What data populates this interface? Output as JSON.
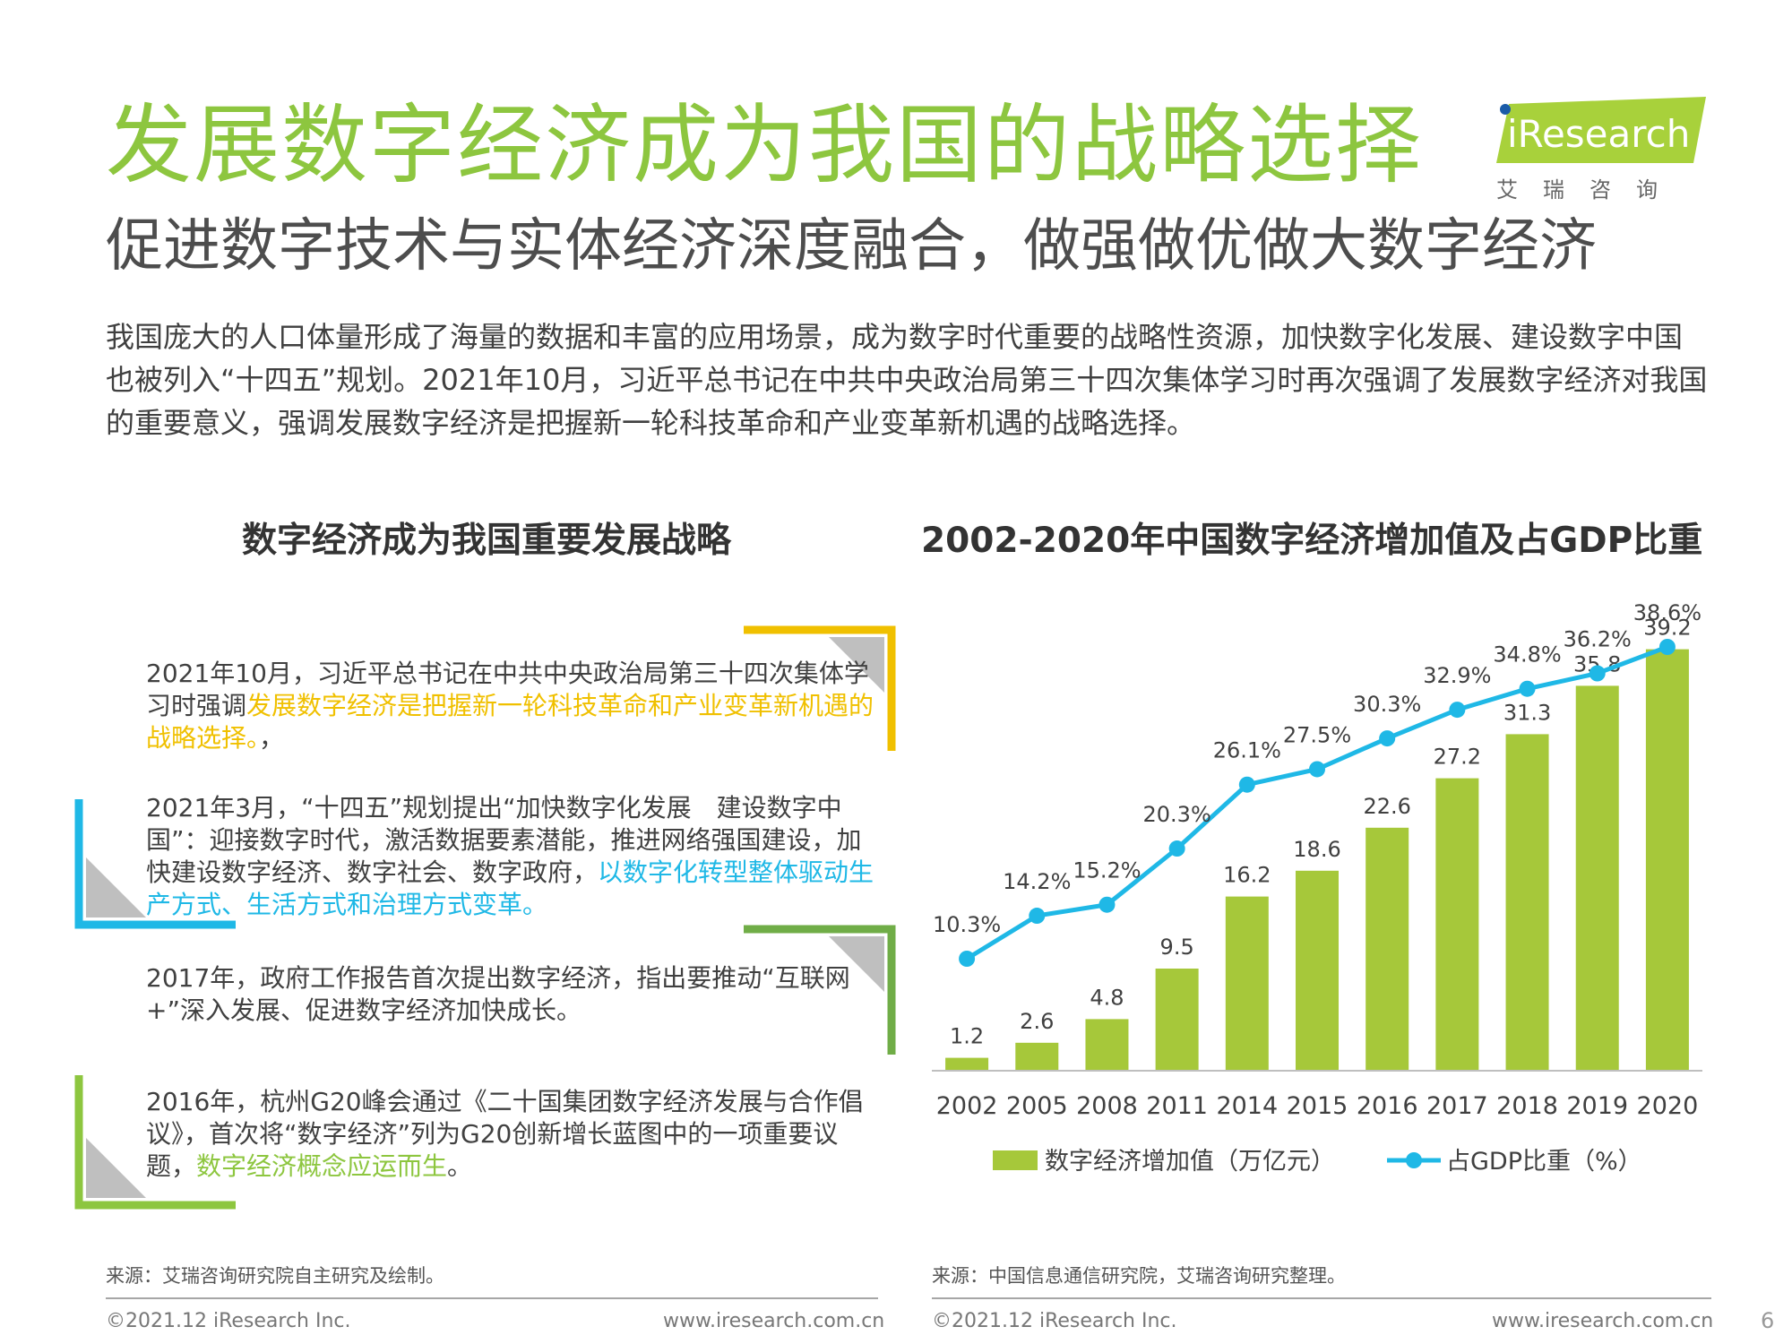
{
  "header": {
    "title": "发展数字经济成为我国的战略选择",
    "subtitle": "促进数字技术与实体经济深度融合，做强做优做大数字经济",
    "intro": "我国庞大的人口体量形成了海量的数据和丰富的应用场景，成为数字时代重要的战略性资源，加快数字化发展、建设数字中国也被列入“十四五”规划。2021年10月，习近平总书记在中共中央政治局第三十四次集体学习时再次强调了发展数字经济对我国的重要意义，强调发展数字经济是把握新一轮科技革命和产业变革新机遇的战略选择。"
  },
  "logo": {
    "text": "iResearch",
    "subtext": "艾瑞咨询"
  },
  "left_panel": {
    "title": "数字经济成为我国重要发展战略",
    "items": [
      {
        "plain": "2021年10月，习近平总书记在中共中央政治局第三十四次集体学习时强调",
        "highlight": "发展数字经济是把握新一轮科技革命和产业变革新机遇的战略选择。",
        "tail": "，",
        "accent": "#f0c000"
      },
      {
        "plain": "2021年3月，“十四五”规划提出“加快数字化发展　建设数字中国”：迎接数字时代，激活数据要素潜能，推进网络强国建设，加快建设数字经济、数字社会、数字政府，",
        "highlight": "以数字化转型整体驱动生产方式、生活方式和治理方式变革。",
        "tail": "",
        "accent": "#1fb8e6"
      },
      {
        "plain": "2017年，政府工作报告首次提出数字经济，指出要推动“互联网+”深入发展、促进数字经济加快成长。",
        "highlight": "",
        "tail": "",
        "accent": "#70ad47"
      },
      {
        "plain": "2016年，杭州G20峰会通过《二十国集团数字经济发展与合作倡议》，首次将“数字经济”列为G20创新增长蓝图中的一项重要议题，",
        "highlight": "数字经济概念应运而生",
        "tail": "。",
        "accent": "#8dc63f"
      }
    ],
    "source": "来源：艾瑞咨询研究院自主研究及绘制。"
  },
  "right_panel": {
    "source": "来源：中国信息通信研究院，艾瑞咨询研究整理。"
  },
  "chart_data": {
    "type": "bar",
    "title": "2002-2020年中国数字经济增加值及占GDP比重",
    "categories": [
      "2002",
      "2005",
      "2008",
      "2011",
      "2014",
      "2015",
      "2016",
      "2017",
      "2018",
      "2019",
      "2020"
    ],
    "series": [
      {
        "name": "数字经济增加值（万亿元）",
        "type": "bar",
        "color": "#a6c83a",
        "values": [
          1.2,
          2.6,
          4.8,
          9.5,
          16.2,
          18.6,
          22.6,
          27.2,
          31.3,
          35.8,
          39.2
        ],
        "labels": [
          "1.2",
          "2.6",
          "4.8",
          "9.5",
          "16.2",
          "18.6",
          "22.6",
          "27.2",
          "31.3",
          "35.8",
          "39.2"
        ]
      },
      {
        "name": "占GDP比重（%）",
        "type": "line",
        "color": "#1fb8e6",
        "values": [
          10.3,
          14.2,
          15.2,
          20.3,
          26.1,
          27.5,
          30.3,
          32.9,
          34.8,
          36.2,
          38.6
        ],
        "labels": [
          "10.3%",
          "14.2%",
          "15.2%",
          "20.3%",
          "26.1%",
          "27.5%",
          "30.3%",
          "32.9%",
          "34.8%",
          "36.2%",
          "38.6%"
        ]
      }
    ],
    "legend": "bottom",
    "grid": false
  },
  "footer": {
    "left_copyright": "©2021.12 iResearch Inc.",
    "left_url": "www.iresearch.com.cn",
    "right_copyright": "©2021.12 iResearch Inc.",
    "right_url": "www.iresearch.com.cn",
    "page": "6"
  }
}
